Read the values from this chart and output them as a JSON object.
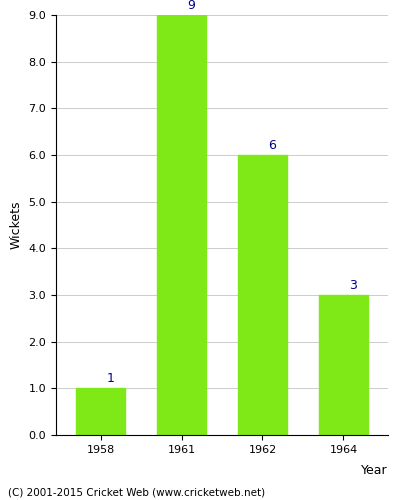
{
  "categories": [
    "1958",
    "1961",
    "1962",
    "1964"
  ],
  "values": [
    1,
    9,
    6,
    3
  ],
  "bar_color": "#7FE817",
  "xlabel": "Year",
  "ylabel": "Wickets",
  "ylim": [
    0.0,
    9.0
  ],
  "yticks": [
    0.0,
    1.0,
    2.0,
    3.0,
    4.0,
    5.0,
    6.0,
    7.0,
    8.0,
    9.0
  ],
  "value_label_color": "#00008B",
  "value_label_fontsize": 9,
  "axis_label_fontsize": 9,
  "tick_fontsize": 8,
  "footer_text": "(C) 2001-2015 Cricket Web (www.cricketweb.net)",
  "footer_fontsize": 7.5,
  "background_color": "#ffffff",
  "grid_color": "#cccccc",
  "bar_width": 0.6
}
